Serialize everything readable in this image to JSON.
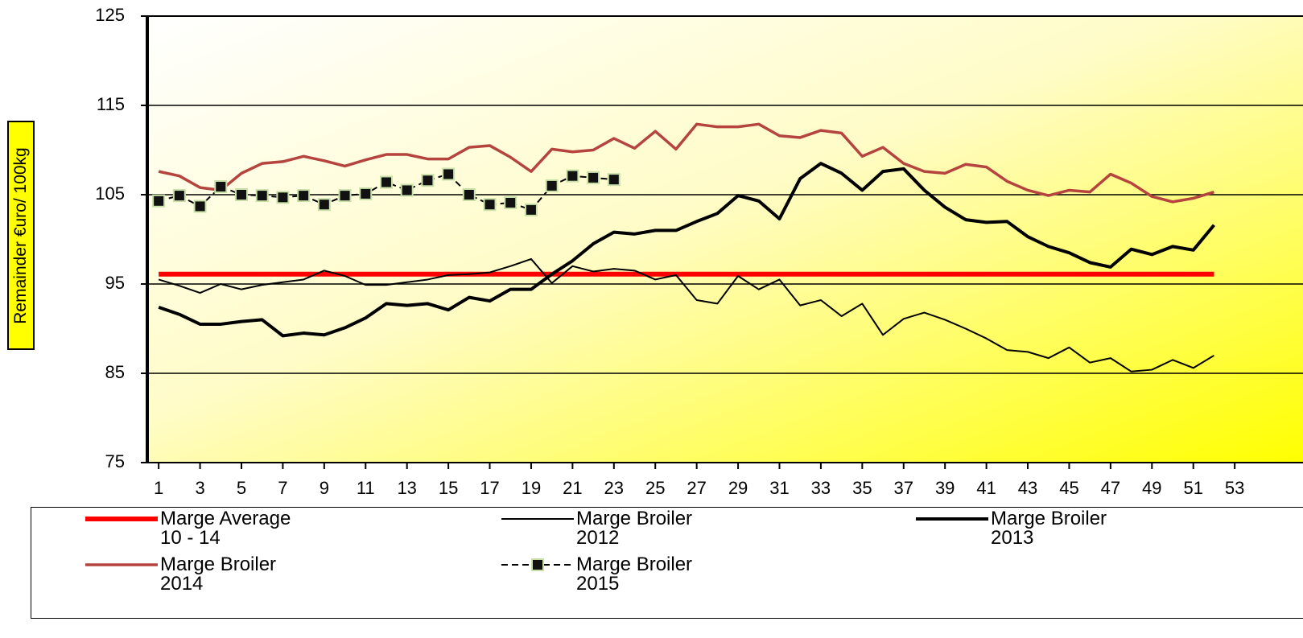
{
  "chart_data": {
    "type": "line",
    "y_label": "Remainder €uro/ 100kg",
    "x": [
      1,
      2,
      3,
      4,
      5,
      6,
      7,
      8,
      9,
      10,
      11,
      12,
      13,
      14,
      15,
      16,
      17,
      18,
      19,
      20,
      21,
      22,
      23,
      24,
      25,
      26,
      27,
      28,
      29,
      30,
      31,
      32,
      33,
      34,
      35,
      36,
      37,
      38,
      39,
      40,
      41,
      42,
      43,
      44,
      45,
      46,
      47,
      48,
      49,
      50,
      51,
      52
    ],
    "xlim": [
      0.45,
      56.3
    ],
    "xticks": [
      1,
      3,
      5,
      7,
      9,
      11,
      13,
      15,
      17,
      19,
      21,
      23,
      25,
      27,
      29,
      31,
      33,
      35,
      37,
      39,
      41,
      43,
      45,
      47,
      49,
      51,
      53
    ],
    "ylim": [
      75,
      125
    ],
    "yticks": [
      75,
      85,
      95,
      105,
      115,
      125
    ],
    "grid": true,
    "series": [
      {
        "name": "Marge Average 10 - 14",
        "color": "#ff0000",
        "width": 6,
        "values": [
          96.1,
          96.1,
          96.1,
          96.1,
          96.1,
          96.1,
          96.1,
          96.1,
          96.1,
          96.1,
          96.1,
          96.1,
          96.1,
          96.1,
          96.1,
          96.1,
          96.1,
          96.1,
          96.1,
          96.1,
          96.1,
          96.1,
          96.1,
          96.1,
          96.1,
          96.1,
          96.1,
          96.1,
          96.1,
          96.1,
          96.1,
          96.1,
          96.1,
          96.1,
          96.1,
          96.1,
          96.1,
          96.1,
          96.1,
          96.1,
          96.1,
          96.1,
          96.1,
          96.1,
          96.1,
          96.1,
          96.1,
          96.1,
          96.1,
          96.1,
          96.1,
          96.1
        ]
      },
      {
        "name": "Marge Broiler 2012",
        "color": "#000000",
        "width": 2,
        "values": [
          95.5,
          94.8,
          94.0,
          95.0,
          94.4,
          94.9,
          95.2,
          95.5,
          96.5,
          95.9,
          94.9,
          94.9,
          95.2,
          95.5,
          96.0,
          96.1,
          96.3,
          97.0,
          97.8,
          95.1,
          97.0,
          96.4,
          96.7,
          96.5,
          95.5,
          96.0,
          93.2,
          92.8,
          95.9,
          94.4,
          95.5,
          92.6,
          93.2,
          91.4,
          92.8,
          89.3,
          91.1,
          91.8,
          91.0,
          90.0,
          88.9,
          87.6,
          87.4,
          86.7,
          87.9,
          86.2,
          86.7,
          85.2,
          85.4,
          86.5,
          85.6,
          87.0
        ]
      },
      {
        "name": "Marge Broiler 2013",
        "color": "#000000",
        "width": 4,
        "values": [
          92.4,
          91.6,
          90.5,
          90.5,
          90.8,
          91.0,
          89.2,
          89.5,
          89.3,
          90.1,
          91.2,
          92.8,
          92.6,
          92.8,
          92.1,
          93.5,
          93.1,
          94.4,
          94.4,
          96.1,
          97.6,
          99.5,
          100.8,
          100.6,
          101.0,
          101.0,
          102.0,
          102.9,
          104.9,
          104.3,
          102.3,
          106.8,
          108.5,
          107.4,
          105.5,
          107.6,
          107.9,
          105.5,
          103.6,
          102.2,
          101.9,
          102.0,
          100.3,
          99.2,
          98.5,
          97.4,
          96.9,
          98.9,
          98.3,
          99.2,
          98.8,
          101.6
        ]
      },
      {
        "name": "Marge Broiler 2014",
        "color": "#b5443f",
        "width": 3.5,
        "values": [
          107.6,
          107.1,
          105.8,
          105.5,
          107.4,
          108.5,
          108.7,
          109.3,
          108.8,
          108.2,
          108.9,
          109.5,
          109.5,
          109.0,
          109.0,
          110.3,
          110.5,
          109.2,
          107.6,
          110.1,
          109.8,
          110.0,
          111.3,
          110.2,
          112.1,
          110.1,
          112.9,
          112.6,
          112.6,
          112.9,
          111.6,
          111.4,
          112.2,
          111.9,
          109.3,
          110.3,
          108.5,
          107.6,
          107.4,
          108.4,
          108.1,
          106.5,
          105.5,
          104.9,
          105.5,
          105.3,
          107.3,
          106.3,
          104.8,
          104.2,
          104.6,
          105.3
        ]
      },
      {
        "name": "Marge Broiler 2015",
        "color": "#000000",
        "width": 2,
        "dashed": true,
        "marker": "square",
        "values": [
          104.3,
          104.9,
          103.7,
          105.9,
          105.0,
          104.9,
          104.7,
          104.9,
          103.9,
          104.9,
          105.1,
          106.4,
          105.5,
          106.6,
          107.3,
          105.0,
          103.9,
          104.1,
          103.3,
          106.0,
          107.1,
          106.9,
          106.7,
          null,
          null,
          null,
          null,
          null,
          null,
          null,
          null,
          null,
          null,
          null,
          null,
          null,
          null,
          null,
          null,
          null,
          null,
          null,
          null,
          null,
          null,
          null,
          null,
          null,
          null,
          null,
          null,
          null
        ]
      }
    ]
  }
}
